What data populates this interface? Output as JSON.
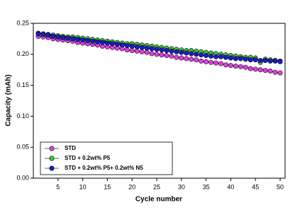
{
  "chart_data": {
    "type": "line",
    "x_label": "Cycle number",
    "y_label": "Capacity (mAh)",
    "x": [
      1,
      2,
      3,
      4,
      5,
      6,
      7,
      8,
      9,
      10,
      11,
      12,
      13,
      14,
      15,
      16,
      17,
      18,
      19,
      20,
      21,
      22,
      23,
      24,
      25,
      26,
      27,
      28,
      29,
      30,
      31,
      32,
      33,
      34,
      35,
      36,
      37,
      38,
      39,
      40,
      41,
      42,
      43,
      44,
      45,
      46,
      47,
      48,
      49,
      50
    ],
    "xlim": [
      0,
      51
    ],
    "xticks": [
      5,
      10,
      15,
      20,
      25,
      30,
      35,
      40,
      45,
      50
    ],
    "ylim": [
      0,
      0.25
    ],
    "yticks": [
      {
        "value": 0,
        "label": "0.00"
      },
      0.05,
      {
        "value": 0.1,
        "label": "0.10"
      },
      0.15,
      {
        "value": 0.2,
        "label": "0.20"
      },
      0.25
    ],
    "series": [
      {
        "name": "STD",
        "color": "#e040e0",
        "values": [
          0.229,
          0.228,
          0.227,
          0.225,
          0.224,
          0.223,
          0.222,
          0.221,
          0.219,
          0.218,
          0.217,
          0.216,
          0.215,
          0.213,
          0.212,
          0.211,
          0.21,
          0.209,
          0.207,
          0.206,
          0.205,
          0.204,
          0.203,
          0.201,
          0.2,
          0.199,
          0.198,
          0.197,
          0.195,
          0.194,
          0.193,
          0.192,
          0.191,
          0.189,
          0.188,
          0.187,
          0.186,
          0.185,
          0.183,
          0.182,
          0.181,
          0.18,
          0.179,
          0.177,
          0.176,
          0.175,
          0.174,
          0.173,
          0.171,
          0.17
        ]
      },
      {
        "name": "STD + 0.2wt% P5",
        "color": "#3cc83c",
        "values": [
          0.234,
          0.233,
          0.232,
          0.231,
          0.23,
          0.229,
          0.228,
          0.228,
          0.227,
          0.226,
          0.225,
          0.224,
          0.223,
          0.222,
          0.221,
          0.22,
          0.219,
          0.218,
          0.217,
          0.217,
          0.216,
          0.215,
          0.214,
          0.213,
          0.212,
          0.211,
          0.21,
          0.209,
          0.208,
          0.207,
          0.206,
          0.206,
          0.205,
          0.204,
          0.203,
          0.202,
          0.201,
          0.2,
          0.199,
          0.198,
          0.197,
          0.196,
          0.195,
          0.195,
          0.194,
          0.187,
          0.192,
          0.191,
          0.19,
          0.189
        ]
      },
      {
        "name": "STD + 0.2wt% P5+ 0.2wt% N5",
        "color": "#1a1ad0",
        "values": [
          0.233,
          0.232,
          0.231,
          0.229,
          0.228,
          0.227,
          0.226,
          0.225,
          0.224,
          0.223,
          0.222,
          0.221,
          0.22,
          0.219,
          0.218,
          0.217,
          0.216,
          0.215,
          0.214,
          0.213,
          0.212,
          0.211,
          0.21,
          0.209,
          0.208,
          0.207,
          0.206,
          0.205,
          0.204,
          0.203,
          0.202,
          0.201,
          0.2,
          0.199,
          0.198,
          0.197,
          0.196,
          0.196,
          0.195,
          0.194,
          0.193,
          0.193,
          0.192,
          0.191,
          0.191,
          0.19,
          0.19,
          0.189,
          0.189,
          0.188
        ]
      }
    ]
  }
}
